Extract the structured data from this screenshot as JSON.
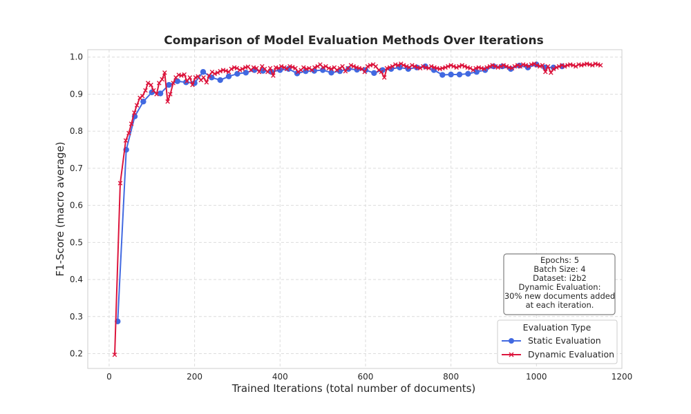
{
  "chart_data": {
    "type": "line",
    "title": "Comparison of Model Evaluation Methods Over Iterations",
    "xlabel": "Trained Iterations (total number of documents)",
    "ylabel": "F1-Score (macro average)",
    "xlim": [
      -50,
      1200
    ],
    "ylim": [
      0.16,
      1.02
    ],
    "xticks": [
      0,
      200,
      400,
      600,
      800,
      1000,
      1200
    ],
    "yticks": [
      0.2,
      0.3,
      0.4,
      0.5,
      0.6,
      0.7,
      0.8,
      0.9,
      1.0
    ],
    "grid": true,
    "legend": {
      "title": "Evaluation Type",
      "placement": "bottom-right"
    },
    "annotation": {
      "lines": [
        "Epochs: 5",
        "Batch Size: 4",
        "Dataset: i2b2",
        "Dynamic Evaluation:",
        "30% new documents added",
        "at each iteration."
      ],
      "placement": "right"
    },
    "series": [
      {
        "name": "Static Evaluation",
        "color": "#4169e1",
        "marker": "circle",
        "x": [
          20,
          40,
          60,
          80,
          100,
          120,
          140,
          160,
          180,
          200,
          220,
          240,
          260,
          280,
          300,
          320,
          340,
          360,
          380,
          400,
          420,
          440,
          460,
          480,
          500,
          520,
          540,
          560,
          580,
          600,
          620,
          640,
          660,
          680,
          700,
          720,
          740,
          760,
          780,
          800,
          820,
          840,
          860,
          880,
          900,
          920,
          940,
          960,
          980,
          1000,
          1020,
          1040,
          1060
        ],
        "y": [
          0.287,
          0.75,
          0.84,
          0.88,
          0.905,
          0.902,
          0.925,
          0.935,
          0.932,
          0.93,
          0.96,
          0.945,
          0.938,
          0.948,
          0.955,
          0.958,
          0.965,
          0.963,
          0.96,
          0.965,
          0.968,
          0.956,
          0.962,
          0.963,
          0.965,
          0.958,
          0.962,
          0.968,
          0.966,
          0.965,
          0.957,
          0.965,
          0.968,
          0.972,
          0.968,
          0.972,
          0.975,
          0.965,
          0.952,
          0.953,
          0.953,
          0.955,
          0.96,
          0.965,
          0.975,
          0.975,
          0.968,
          0.977,
          0.972,
          0.98,
          0.972,
          0.972,
          0.975
        ]
      },
      {
        "name": "Dynamic Evaluation",
        "color": "#dc143c",
        "marker": "x",
        "x": [
          13,
          26,
          39,
          46,
          52,
          59,
          65,
          72,
          78,
          85,
          91,
          98,
          104,
          111,
          117,
          124,
          130,
          137,
          143,
          150,
          156,
          163,
          169,
          176,
          182,
          189,
          195,
          202,
          208,
          215,
          221,
          228,
          234,
          241,
          247,
          254,
          260,
          267,
          273,
          280,
          286,
          293,
          299,
          306,
          312,
          319,
          325,
          332,
          338,
          345,
          351,
          358,
          364,
          371,
          377,
          384,
          390,
          397,
          403,
          410,
          416,
          423,
          429,
          436,
          442,
          449,
          455,
          462,
          468,
          475,
          481,
          488,
          494,
          501,
          507,
          514,
          520,
          527,
          533,
          540,
          546,
          553,
          559,
          566,
          572,
          579,
          585,
          592,
          598,
          605,
          611,
          618,
          624,
          631,
          637,
          644,
          650,
          657,
          663,
          670,
          676,
          683,
          689,
          696,
          702,
          709,
          715,
          722,
          728,
          735,
          741,
          748,
          754,
          761,
          767,
          774,
          780,
          787,
          793,
          800,
          806,
          813,
          819,
          826,
          832,
          839,
          845,
          852,
          858,
          865,
          871,
          878,
          884,
          891,
          897,
          904,
          910,
          917,
          923,
          930,
          936,
          943,
          949,
          956,
          962,
          969,
          975,
          982,
          988,
          995,
          1001,
          1008,
          1014,
          1021,
          1027,
          1034,
          1040,
          1047,
          1053,
          1060,
          1066,
          1073,
          1079,
          1086,
          1092,
          1099,
          1105,
          1112,
          1118,
          1125,
          1131,
          1138,
          1144,
          1150
        ],
        "y": [
          0.197,
          0.66,
          0.775,
          0.795,
          0.82,
          0.85,
          0.87,
          0.89,
          0.895,
          0.91,
          0.93,
          0.925,
          0.91,
          0.9,
          0.93,
          0.94,
          0.958,
          0.88,
          0.9,
          0.93,
          0.945,
          0.952,
          0.95,
          0.953,
          0.935,
          0.945,
          0.925,
          0.945,
          0.948,
          0.938,
          0.945,
          0.932,
          0.95,
          0.96,
          0.955,
          0.958,
          0.962,
          0.965,
          0.963,
          0.96,
          0.968,
          0.972,
          0.97,
          0.965,
          0.968,
          0.972,
          0.974,
          0.965,
          0.972,
          0.97,
          0.96,
          0.975,
          0.968,
          0.96,
          0.97,
          0.95,
          0.972,
          0.97,
          0.975,
          0.972,
          0.968,
          0.975,
          0.973,
          0.97,
          0.96,
          0.965,
          0.972,
          0.968,
          0.97,
          0.965,
          0.972,
          0.975,
          0.98,
          0.972,
          0.975,
          0.97,
          0.968,
          0.972,
          0.965,
          0.97,
          0.975,
          0.962,
          0.97,
          0.978,
          0.975,
          0.972,
          0.97,
          0.968,
          0.96,
          0.975,
          0.978,
          0.98,
          0.975,
          0.965,
          0.96,
          0.945,
          0.97,
          0.972,
          0.975,
          0.98,
          0.978,
          0.982,
          0.978,
          0.975,
          0.972,
          0.978,
          0.975,
          0.972,
          0.97,
          0.975,
          0.972,
          0.97,
          0.975,
          0.972,
          0.97,
          0.968,
          0.97,
          0.972,
          0.975,
          0.978,
          0.975,
          0.972,
          0.975,
          0.978,
          0.975,
          0.972,
          0.97,
          0.965,
          0.97,
          0.972,
          0.97,
          0.968,
          0.972,
          0.975,
          0.978,
          0.975,
          0.972,
          0.975,
          0.978,
          0.975,
          0.972,
          0.97,
          0.975,
          0.978,
          0.975,
          0.98,
          0.978,
          0.975,
          0.98,
          0.982,
          0.978,
          0.975,
          0.978,
          0.96,
          0.975,
          0.958,
          0.968,
          0.972,
          0.975,
          0.978,
          0.975,
          0.978,
          0.98,
          0.978,
          0.975,
          0.98,
          0.978,
          0.98,
          0.982,
          0.98,
          0.978,
          0.982,
          0.98,
          0.978
        ]
      }
    ]
  }
}
